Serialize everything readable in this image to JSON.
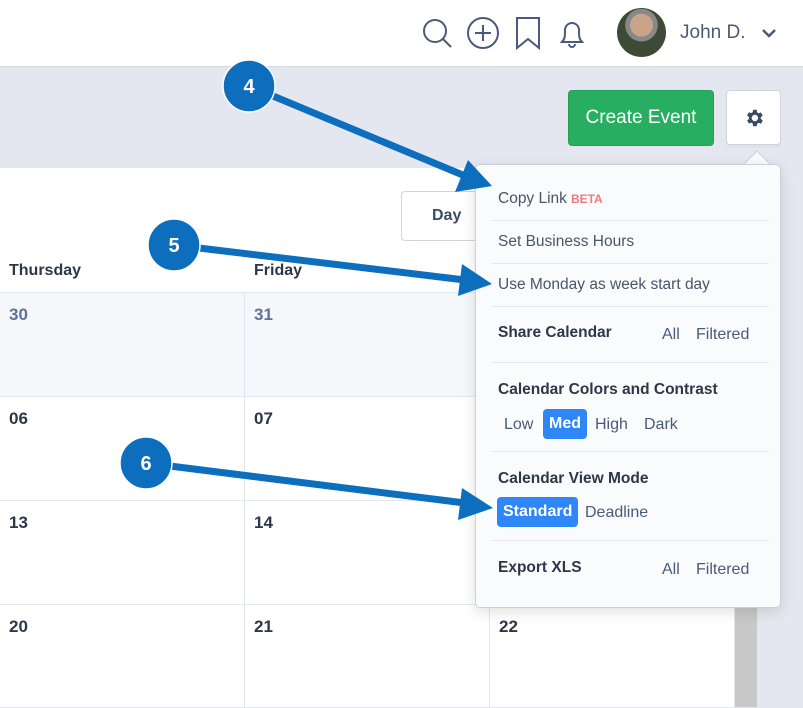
{
  "header": {
    "user_name": "John D.",
    "icons": [
      "search-icon",
      "plus-circle-icon",
      "bookmark-icon",
      "bell-icon",
      "chevron-down-icon"
    ]
  },
  "toolbar": {
    "create_event": "Create Event",
    "settings_icon": "gear-icon"
  },
  "view": {
    "day": "Day"
  },
  "calendar": {
    "columns": [
      "Thursday",
      "Friday"
    ],
    "rows": [
      [
        "30",
        "31",
        ""
      ],
      [
        "06",
        "07",
        ""
      ],
      [
        "13",
        "14",
        ""
      ],
      [
        "20",
        "21",
        "22"
      ]
    ]
  },
  "menu": {
    "copy_link": "Copy Link",
    "beta": "BETA",
    "business_hours": "Set Business Hours",
    "monday_start": "Use Monday as week start day",
    "share": {
      "label": "Share Calendar",
      "all": "All",
      "filtered": "Filtered"
    },
    "colors": {
      "label": "Calendar Colors and Contrast",
      "options": [
        "Low",
        "Med",
        "High",
        "Dark"
      ],
      "selected": "Med"
    },
    "view_mode": {
      "label": "Calendar View Mode",
      "options": [
        "Standard",
        "Deadline"
      ],
      "selected": "Standard"
    },
    "export": {
      "label": "Export XLS",
      "all": "All",
      "filtered": "Filtered"
    }
  },
  "annotations": [
    "4",
    "5",
    "6"
  ],
  "colors": {
    "accent": "#2f86f6",
    "create": "#27ae60",
    "annotation": "#0d6ebd",
    "beta": "#f07a7a"
  }
}
